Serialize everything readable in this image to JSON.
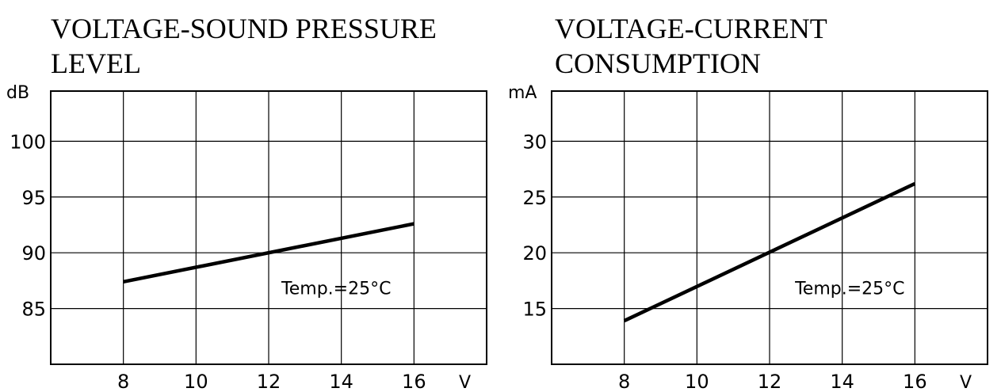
{
  "chart_data": [
    {
      "type": "line",
      "title_lines": [
        "VOLTAGE-SOUND PRESSURE",
        "LEVEL"
      ],
      "y_unit": "dB",
      "x_unit": "V",
      "x_ticks": [
        "8",
        "10",
        "12",
        "14",
        "16"
      ],
      "y_ticks": [
        "100",
        "95",
        "90",
        "85"
      ],
      "xlim": [
        6,
        18
      ],
      "ylim": [
        80,
        104.5
      ],
      "grid": true,
      "annotation": "Temp.=25°C",
      "annotation_at": [
        12.35,
        86.3
      ],
      "series": [
        {
          "x": [
            8,
            16
          ],
          "values": [
            87.4,
            92.6
          ]
        }
      ]
    },
    {
      "type": "line",
      "title_lines": [
        "VOLTAGE-CURRENT",
        "CONSUMPTION"
      ],
      "y_unit": "mA",
      "x_unit": "V",
      "x_ticks": [
        "8",
        "10",
        "12",
        "14",
        "16"
      ],
      "y_ticks": [
        "30",
        "25",
        "20",
        "15"
      ],
      "xlim": [
        6,
        18
      ],
      "ylim": [
        10,
        34.5
      ],
      "grid": true,
      "annotation": "Temp.=25°C",
      "annotation_at": [
        12.7,
        16.3
      ],
      "series": [
        {
          "x": [
            8,
            16
          ],
          "values": [
            13.9,
            26.2
          ]
        }
      ]
    }
  ]
}
